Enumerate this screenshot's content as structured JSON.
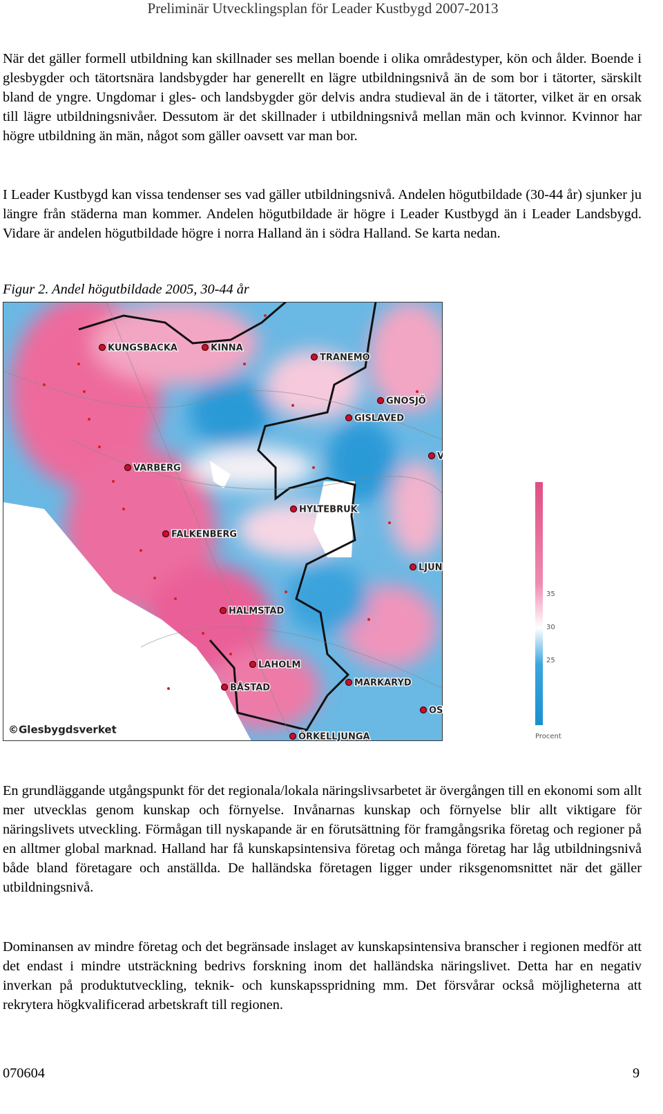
{
  "header": {
    "title": "Preliminär Utvecklingsplan för Leader Kustbygd 2007-2013"
  },
  "paragraphs": [
    "När det gäller formell utbildning kan skillnader ses mellan boende i olika områdestyper, kön och ålder. Boende i glesbygder och tätortsnära landsbygder har generellt en lägre utbildningsnivå än de som bor i tätorter, särskilt bland de yngre. Ungdomar i gles- och landsbygder gör delvis andra studieval än de i tätorter, vilket är en orsak till lägre utbildningsnivåer. Dessutom är det skillnader i utbildningsnivå mellan män och kvinnor. Kvinnor har högre utbildning än män, något som gäller oavsett var man bor.",
    "I Leader Kustbygd kan vissa tendenser ses vad gäller utbildningsnivå. Andelen högutbildade (30-44 år) sjunker ju längre från städerna man kommer. Andelen högutbildade är högre i Leader Kustbygd än i Leader Landsbygd. Vidare är andelen högutbildade högre i norra Halland än i södra Halland. Se karta nedan.",
    "En grundläggande utgångspunkt för det regionala/lokala näringslivsarbetet är övergången till en ekonomi som allt mer utvecklas genom kunskap och förnyelse. Invånarnas kunskap och förnyelse blir allt viktigare för näringslivets utveckling. Förmågan till nyskapande är en förutsättning för framgångsrika företag och regioner på en alltmer global marknad. Halland har få kunskapsintensiva företag och många företag har låg utbildningsnivå både bland företagare och anställda. De halländska företagen ligger under riksgenomsnittet när det gäller utbildningsnivå.",
    "Dominansen av mindre företag och det begränsade inslaget av kunskapsintensiva branscher i regionen medför att det endast i mindre utsträckning bedrivs forskning inom det halländska näringslivet. Detta har en negativ inverkan på produktutveckling, teknik- och kunskapsspridning mm. Det försvårar också möjligheterna att rekrytera högkvalificerad arbetskraft till regionen."
  ],
  "figure": {
    "caption": "Figur 2. Andel högutbildade 2005, 30-44 år",
    "places": [
      "KUNGSBACKA",
      "KINNA",
      "TRANEMO",
      "GNOSJÖ",
      "GISLAVED",
      "V",
      "VARBERG",
      "HYLTEBRUK",
      "FALKENBERG",
      "LJUN",
      "HALMSTAD",
      "LAHOLM",
      "BÅSTAD",
      "MARKARYD",
      "OSEB",
      "ÖRKELLJUNGA"
    ],
    "credit": "©Glesbygdsverket",
    "legend": {
      "ticks": [
        35,
        30,
        25
      ],
      "unit": "Procent"
    }
  },
  "footer": {
    "date": "070604",
    "page": "9"
  }
}
